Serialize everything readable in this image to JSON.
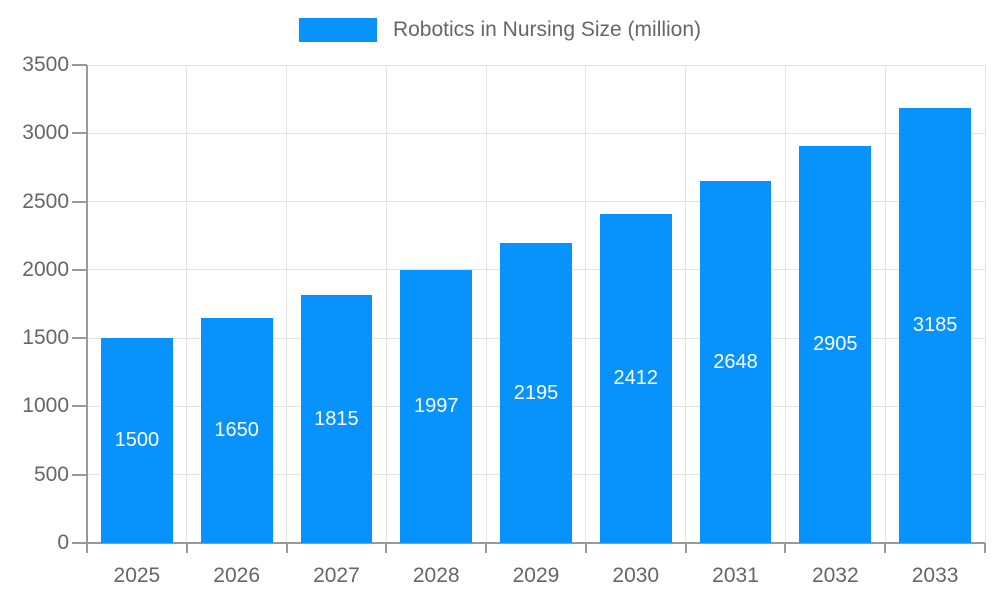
{
  "legend": {
    "label": "Robotics in Nursing Size (million)",
    "swatch_color": "#0892fb"
  },
  "chart_data": {
    "type": "bar",
    "title": "Robotics in Nursing Size (million)",
    "categories": [
      "2025",
      "2026",
      "2027",
      "2028",
      "2029",
      "2030",
      "2031",
      "2032",
      "2033"
    ],
    "values": [
      1500,
      1650,
      1815,
      1997,
      2195,
      2412,
      2648,
      2905,
      3185
    ],
    "xlabel": "",
    "ylabel": "",
    "ylim": [
      0,
      3500
    ],
    "ytick_step": 500,
    "ytick_labels": [
      "0",
      "500",
      "1000",
      "1500",
      "2000",
      "2500",
      "3000",
      "3500"
    ],
    "grid": true,
    "legend_position": "top",
    "bar_color": "#0892fb",
    "bar_label_color": "#ffffff",
    "axis_color": "#999999",
    "grid_color": "#e3e3e3",
    "text_color": "#666666"
  }
}
